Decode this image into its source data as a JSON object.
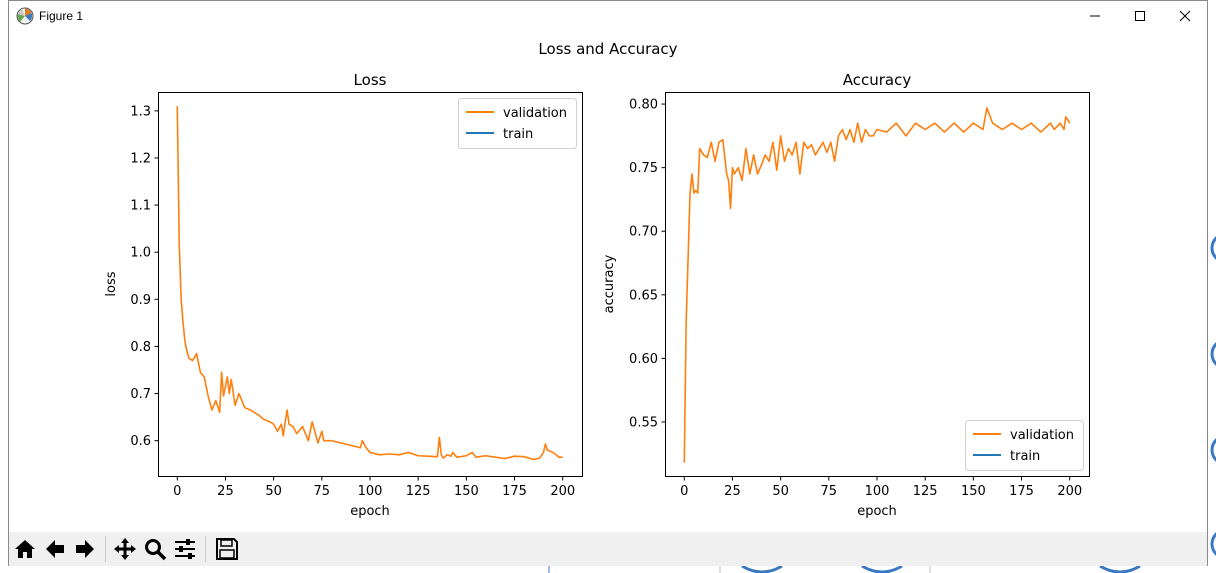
{
  "window": {
    "title": "Figure 1",
    "icon": "matplotlib-icon",
    "controls": [
      "minimize-icon",
      "maximize-icon",
      "close-icon"
    ]
  },
  "figure": {
    "suptitle": "Loss and Accuracy"
  },
  "toolbar": {
    "icons": [
      "home-icon",
      "back-arrow-icon",
      "forward-arrow-icon",
      "pan-icon",
      "zoom-icon",
      "configure-subplots-icon",
      "save-icon"
    ]
  },
  "colors": {
    "validation": "#ff7f0e",
    "train": "#1f77b4"
  },
  "chart_data": [
    {
      "type": "line",
      "title": "Loss",
      "xlabel": "epoch",
      "ylabel": "loss",
      "xlim": [
        -10,
        210
      ],
      "ylim": [
        0.525,
        1.34
      ],
      "xticks": [
        0,
        25,
        50,
        75,
        100,
        125,
        150,
        175,
        200
      ],
      "yticks": [
        0.6,
        0.7,
        0.8,
        0.9,
        1.0,
        1.1,
        1.2,
        1.3
      ],
      "xticklabels": [
        "0",
        "25",
        "50",
        "75",
        "100",
        "125",
        "150",
        "175",
        "200"
      ],
      "yticklabels": [
        "0.6",
        "0.7",
        "0.8",
        "0.9",
        "1.0",
        "1.1",
        "1.2",
        "1.3"
      ],
      "legend_position": "upper right",
      "grid": false,
      "series": [
        {
          "name": "validation",
          "color": "#ff7f0e",
          "x": [
            0,
            1,
            2,
            3,
            4,
            5,
            6,
            8,
            10,
            12,
            14,
            16,
            18,
            20,
            22,
            23,
            24,
            26,
            27,
            28,
            30,
            32,
            35,
            38,
            40,
            42,
            45,
            48,
            50,
            52,
            54,
            55,
            56,
            57,
            58,
            60,
            62,
            65,
            68,
            70,
            72,
            73,
            75,
            76,
            78,
            80,
            85,
            90,
            95,
            96,
            98,
            100,
            105,
            110,
            115,
            120,
            125,
            130,
            135,
            136,
            137,
            138,
            140,
            142,
            143,
            145,
            150,
            153,
            155,
            160,
            165,
            170,
            175,
            180,
            185,
            188,
            190,
            191,
            192,
            195,
            198,
            200
          ],
          "y": [
            1.31,
            1.02,
            0.9,
            0.85,
            0.81,
            0.79,
            0.775,
            0.77,
            0.785,
            0.745,
            0.735,
            0.695,
            0.665,
            0.685,
            0.66,
            0.745,
            0.695,
            0.735,
            0.7,
            0.73,
            0.675,
            0.7,
            0.67,
            0.665,
            0.66,
            0.655,
            0.645,
            0.64,
            0.635,
            0.62,
            0.635,
            0.61,
            0.64,
            0.665,
            0.635,
            0.63,
            0.615,
            0.63,
            0.6,
            0.64,
            0.61,
            0.595,
            0.62,
            0.6,
            0.6,
            0.6,
            0.595,
            0.59,
            0.585,
            0.6,
            0.585,
            0.575,
            0.57,
            0.572,
            0.57,
            0.575,
            0.568,
            0.567,
            0.566,
            0.607,
            0.57,
            0.563,
            0.57,
            0.567,
            0.575,
            0.565,
            0.568,
            0.575,
            0.565,
            0.568,
            0.565,
            0.562,
            0.567,
            0.566,
            0.56,
            0.563,
            0.575,
            0.593,
            0.58,
            0.575,
            0.565,
            0.565
          ]
        },
        {
          "name": "train",
          "color": "#1f77b4",
          "x": [],
          "y": []
        }
      ]
    },
    {
      "type": "line",
      "title": "Accuracy",
      "xlabel": "epoch",
      "ylabel": "accuracy",
      "xlim": [
        -10,
        210
      ],
      "ylim": [
        0.5075,
        0.8095
      ],
      "xticks": [
        0,
        25,
        50,
        75,
        100,
        125,
        150,
        175,
        200
      ],
      "yticks": [
        0.55,
        0.6,
        0.65,
        0.7,
        0.75,
        0.8
      ],
      "xticklabels": [
        "0",
        "25",
        "50",
        "75",
        "100",
        "125",
        "150",
        "175",
        "200"
      ],
      "yticklabels": [
        "0.55",
        "0.60",
        "0.65",
        "0.70",
        "0.75",
        "0.80"
      ],
      "legend_position": "lower right",
      "grid": false,
      "series": [
        {
          "name": "validation",
          "color": "#ff7f0e",
          "x": [
            0,
            1,
            2,
            3,
            4,
            5,
            6,
            7,
            8,
            10,
            12,
            14,
            16,
            18,
            20,
            22,
            23,
            24,
            25,
            26,
            28,
            30,
            32,
            34,
            36,
            38,
            40,
            42,
            44,
            46,
            48,
            50,
            52,
            54,
            56,
            58,
            60,
            62,
            64,
            66,
            68,
            70,
            72,
            74,
            76,
            78,
            80,
            82,
            84,
            86,
            88,
            90,
            92,
            94,
            96,
            98,
            100,
            105,
            110,
            115,
            120,
            125,
            130,
            135,
            140,
            145,
            150,
            155,
            157,
            160,
            165,
            170,
            175,
            180,
            185,
            190,
            192,
            195,
            197,
            198,
            200
          ],
          "y": [
            0.518,
            0.63,
            0.68,
            0.73,
            0.745,
            0.73,
            0.732,
            0.73,
            0.765,
            0.76,
            0.758,
            0.77,
            0.755,
            0.77,
            0.772,
            0.745,
            0.74,
            0.718,
            0.75,
            0.745,
            0.75,
            0.74,
            0.765,
            0.745,
            0.76,
            0.745,
            0.752,
            0.76,
            0.755,
            0.77,
            0.748,
            0.775,
            0.755,
            0.765,
            0.76,
            0.77,
            0.745,
            0.77,
            0.765,
            0.768,
            0.76,
            0.765,
            0.77,
            0.762,
            0.77,
            0.755,
            0.775,
            0.78,
            0.772,
            0.78,
            0.77,
            0.785,
            0.77,
            0.78,
            0.775,
            0.775,
            0.78,
            0.778,
            0.785,
            0.775,
            0.785,
            0.78,
            0.785,
            0.778,
            0.785,
            0.778,
            0.785,
            0.78,
            0.797,
            0.785,
            0.78,
            0.785,
            0.78,
            0.785,
            0.778,
            0.785,
            0.78,
            0.785,
            0.78,
            0.79,
            0.785
          ]
        },
        {
          "name": "train",
          "color": "#1f77b4",
          "x": [],
          "y": []
        }
      ]
    }
  ]
}
